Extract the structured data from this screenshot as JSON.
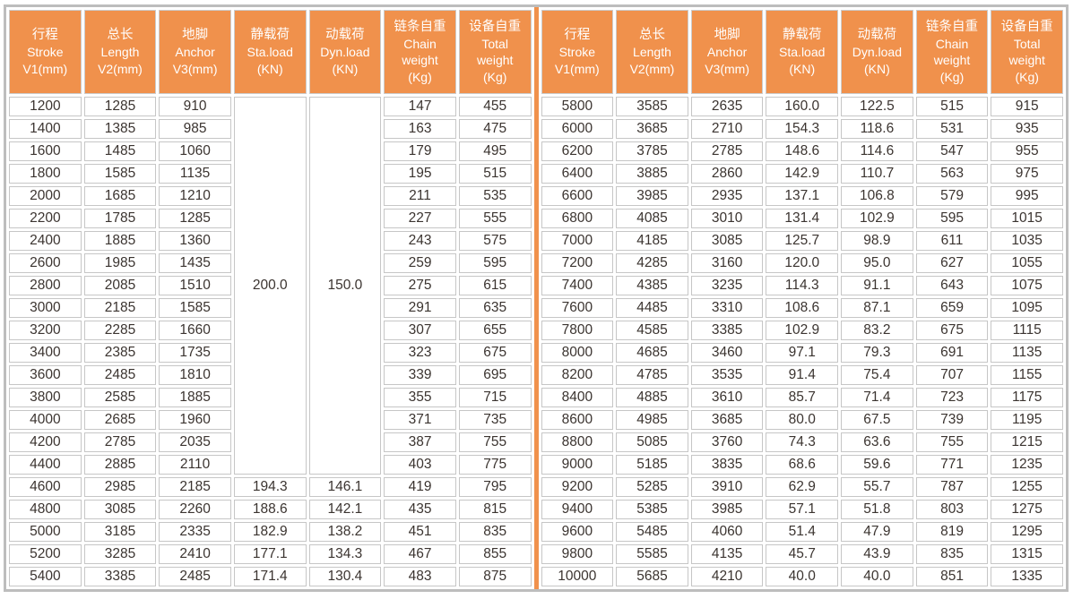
{
  "colors": {
    "accent": "#f0914c",
    "grid": "#c6c6c6",
    "outer_border": "#bdbdbd",
    "header_text": "#ffffff",
    "data_text": "#3b3430"
  },
  "header": {
    "columns": [
      {
        "zh": "行程",
        "en": [
          "Stroke",
          "V1(mm)"
        ]
      },
      {
        "zh": "总长",
        "en": [
          "Length",
          "V2(mm)"
        ]
      },
      {
        "zh": "地脚",
        "en": [
          "Anchor",
          "V3(mm)"
        ]
      },
      {
        "zh": "静载荷",
        "en": [
          "Sta.load",
          "(KN)"
        ]
      },
      {
        "zh": "动载荷",
        "en": [
          "Dyn.load",
          "(KN)"
        ]
      },
      {
        "zh": "链条自重",
        "en": [
          "Chain",
          "weight",
          "(Kg)"
        ]
      },
      {
        "zh": "设备自重",
        "en": [
          "Total",
          "weight",
          "(Kg)"
        ]
      }
    ]
  },
  "left_table": {
    "merged": {
      "span": 17,
      "values": {
        "3": "200.0",
        "4": "150.0"
      }
    },
    "rows": [
      [
        "1200",
        "1285",
        "910",
        null,
        null,
        "147",
        "455"
      ],
      [
        "1400",
        "1385",
        "985",
        null,
        null,
        "163",
        "475"
      ],
      [
        "1600",
        "1485",
        "1060",
        null,
        null,
        "179",
        "495"
      ],
      [
        "1800",
        "1585",
        "1135",
        null,
        null,
        "195",
        "515"
      ],
      [
        "2000",
        "1685",
        "1210",
        null,
        null,
        "211",
        "535"
      ],
      [
        "2200",
        "1785",
        "1285",
        null,
        null,
        "227",
        "555"
      ],
      [
        "2400",
        "1885",
        "1360",
        null,
        null,
        "243",
        "575"
      ],
      [
        "2600",
        "1985",
        "1435",
        null,
        null,
        "259",
        "595"
      ],
      [
        "2800",
        "2085",
        "1510",
        null,
        null,
        "275",
        "615"
      ],
      [
        "3000",
        "2185",
        "1585",
        null,
        null,
        "291",
        "635"
      ],
      [
        "3200",
        "2285",
        "1660",
        null,
        null,
        "307",
        "655"
      ],
      [
        "3400",
        "2385",
        "1735",
        null,
        null,
        "323",
        "675"
      ],
      [
        "3600",
        "2485",
        "1810",
        null,
        null,
        "339",
        "695"
      ],
      [
        "3800",
        "2585",
        "1885",
        null,
        null,
        "355",
        "715"
      ],
      [
        "4000",
        "2685",
        "1960",
        null,
        null,
        "371",
        "735"
      ],
      [
        "4200",
        "2785",
        "2035",
        null,
        null,
        "387",
        "755"
      ],
      [
        "4400",
        "2885",
        "2110",
        null,
        null,
        "403",
        "775"
      ],
      [
        "4600",
        "2985",
        "2185",
        "194.3",
        "146.1",
        "419",
        "795"
      ],
      [
        "4800",
        "3085",
        "2260",
        "188.6",
        "142.1",
        "435",
        "815"
      ],
      [
        "5000",
        "3185",
        "2335",
        "182.9",
        "138.2",
        "451",
        "835"
      ],
      [
        "5200",
        "3285",
        "2410",
        "177.1",
        "134.3",
        "467",
        "855"
      ],
      [
        "5400",
        "3385",
        "2485",
        "171.4",
        "130.4",
        "483",
        "875"
      ]
    ]
  },
  "right_table": {
    "rows": [
      [
        "5800",
        "3585",
        "2635",
        "160.0",
        "122.5",
        "515",
        "915"
      ],
      [
        "6000",
        "3685",
        "2710",
        "154.3",
        "118.6",
        "531",
        "935"
      ],
      [
        "6200",
        "3785",
        "2785",
        "148.6",
        "114.6",
        "547",
        "955"
      ],
      [
        "6400",
        "3885",
        "2860",
        "142.9",
        "110.7",
        "563",
        "975"
      ],
      [
        "6600",
        "3985",
        "2935",
        "137.1",
        "106.8",
        "579",
        "995"
      ],
      [
        "6800",
        "4085",
        "3010",
        "131.4",
        "102.9",
        "595",
        "1015"
      ],
      [
        "7000",
        "4185",
        "3085",
        "125.7",
        "98.9",
        "611",
        "1035"
      ],
      [
        "7200",
        "4285",
        "3160",
        "120.0",
        "95.0",
        "627",
        "1055"
      ],
      [
        "7400",
        "4385",
        "3235",
        "114.3",
        "91.1",
        "643",
        "1075"
      ],
      [
        "7600",
        "4485",
        "3310",
        "108.6",
        "87.1",
        "659",
        "1095"
      ],
      [
        "7800",
        "4585",
        "3385",
        "102.9",
        "83.2",
        "675",
        "1115"
      ],
      [
        "8000",
        "4685",
        "3460",
        "97.1",
        "79.3",
        "691",
        "1135"
      ],
      [
        "8200",
        "4785",
        "3535",
        "91.4",
        "75.4",
        "707",
        "1155"
      ],
      [
        "8400",
        "4885",
        "3610",
        "85.7",
        "71.4",
        "723",
        "1175"
      ],
      [
        "8600",
        "4985",
        "3685",
        "80.0",
        "67.5",
        "739",
        "1195"
      ],
      [
        "8800",
        "5085",
        "3760",
        "74.3",
        "63.6",
        "755",
        "1215"
      ],
      [
        "9000",
        "5185",
        "3835",
        "68.6",
        "59.6",
        "771",
        "1235"
      ],
      [
        "9200",
        "5285",
        "3910",
        "62.9",
        "55.7",
        "787",
        "1255"
      ],
      [
        "9400",
        "5385",
        "3985",
        "57.1",
        "51.8",
        "803",
        "1275"
      ],
      [
        "9600",
        "5485",
        "4060",
        "51.4",
        "47.9",
        "819",
        "1295"
      ],
      [
        "9800",
        "5585",
        "4135",
        "45.7",
        "43.9",
        "835",
        "1315"
      ],
      [
        "10000",
        "5685",
        "4210",
        "40.0",
        "40.0",
        "851",
        "1335"
      ]
    ]
  }
}
